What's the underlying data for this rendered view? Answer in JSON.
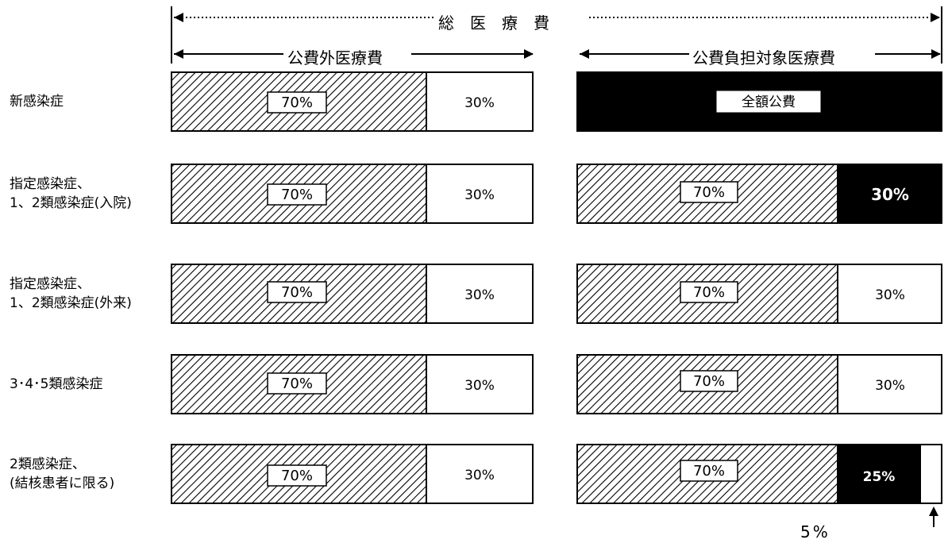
{
  "header": {
    "total": "総　医　療　費",
    "left_section": "公費外医療費",
    "right_section": "公費負担対象医療費"
  },
  "rows": [
    {
      "label": "新感染症",
      "left": {
        "hatched": "70%",
        "white": "30%"
      },
      "right": {
        "full_label": "全額公費"
      }
    },
    {
      "label": "指定感染症、\n1、2類感染症(入院)",
      "left": {
        "hatched": "70%",
        "white": "30%"
      },
      "right": {
        "hatched": "70%",
        "black": "30%"
      }
    },
    {
      "label": "指定感染症、\n1、2類感染症(外来)",
      "left": {
        "hatched": "70%",
        "white": "30%"
      },
      "right": {
        "hatched": "70%",
        "white": "30%"
      }
    },
    {
      "label": "3･4･5類感染症",
      "left": {
        "hatched": "70%",
        "white": "30%"
      },
      "right": {
        "hatched": "70%",
        "white": "30%"
      }
    },
    {
      "label": "2類感染症、\n(結核患者に限る)",
      "left": {
        "hatched": "70%",
        "white": "30%"
      },
      "right": {
        "hatched": "70%",
        "black": "25%",
        "white_small": "5%"
      }
    }
  ],
  "colors": {
    "hatch": "#000000",
    "fill_black": "#000000",
    "background": "#ffffff"
  }
}
